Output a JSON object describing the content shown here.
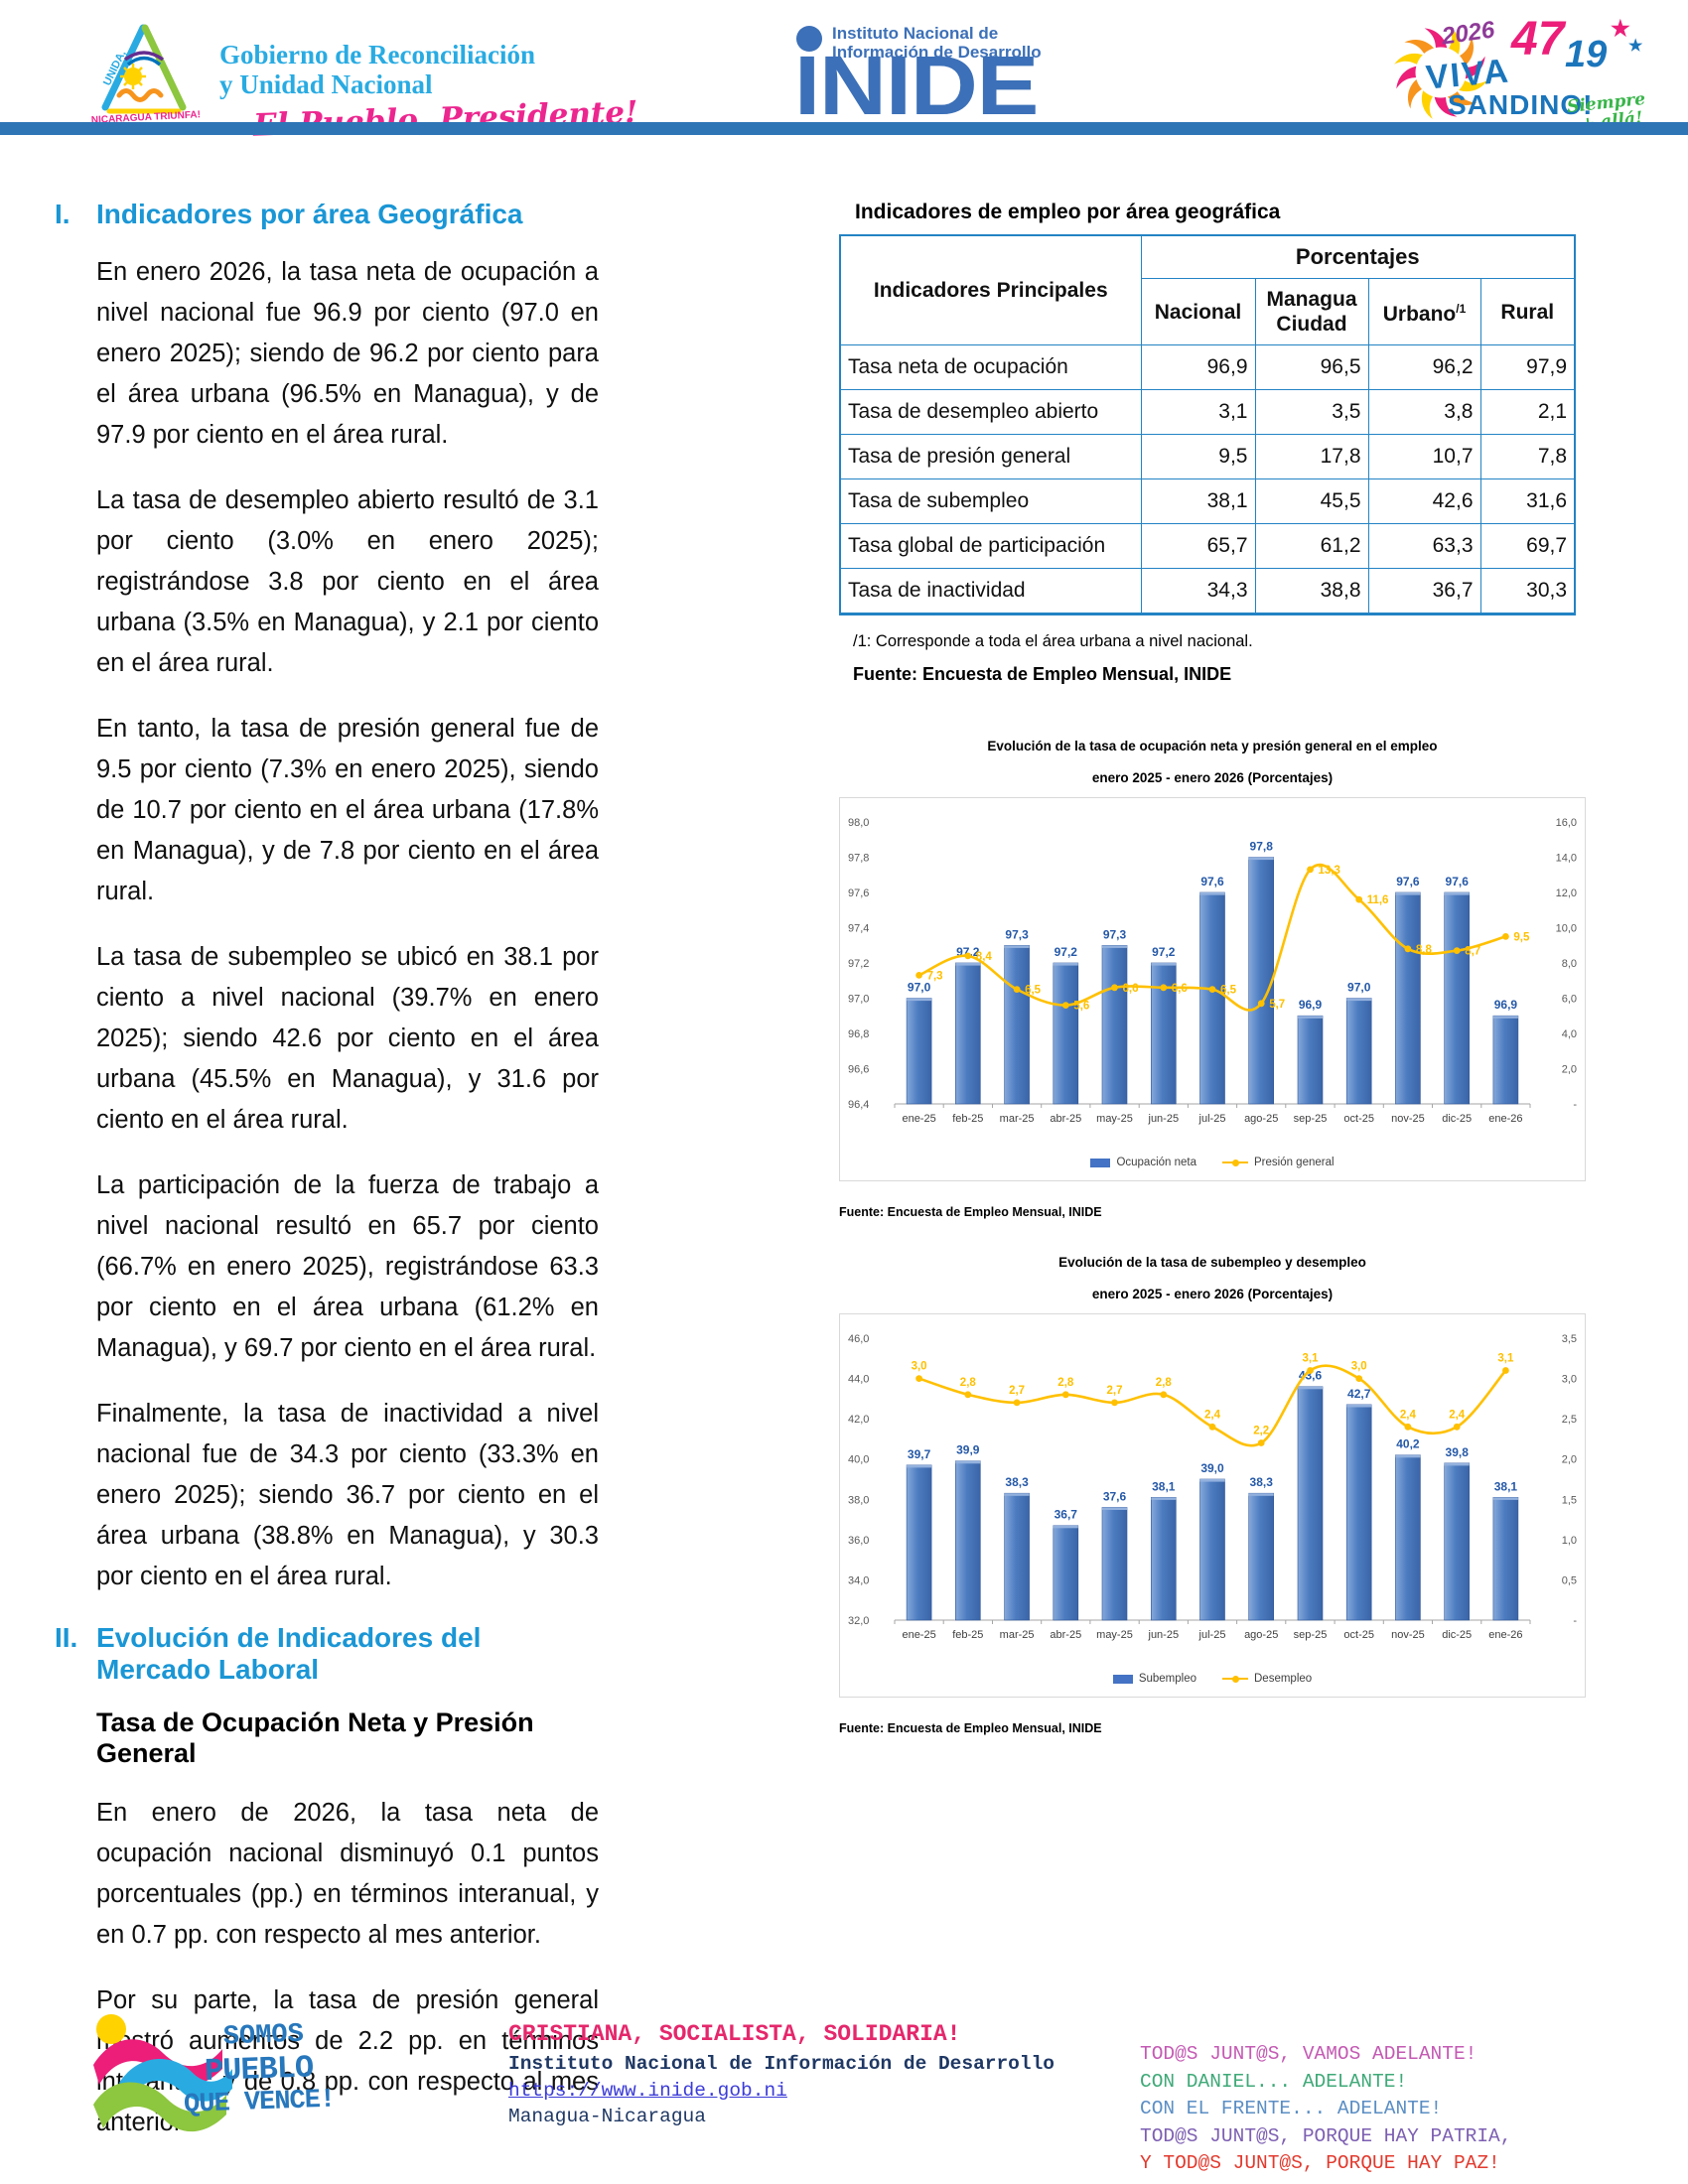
{
  "header": {
    "gov_logo": {
      "emblem_text_1": "UNIDA,",
      "emblem_text_2": "NICARAGUA TRIUNFA!",
      "line1": "Gobierno de Reconciliación",
      "line2": "y Unidad Nacional",
      "slogan": "El Pueblo, Presidente!"
    },
    "inide_logo": {
      "line1": "Instituto Nacional de",
      "line2": "Información de Desarrollo",
      "acronym": "INIDE"
    },
    "sandino_logo": {
      "year": "2026",
      "anniversary_1": "47",
      "anniversary_2": "19",
      "star_1": "★",
      "star_2": "★",
      "line1": "VIVA",
      "line2": "SANDINO!",
      "tagline_1": "Siempre",
      "tagline_2": "+ allá!"
    }
  },
  "left_column": {
    "section1": {
      "number": "I.",
      "title": "Indicadores por área Geográfica",
      "paragraphs": [
        "En enero 2026, la tasa neta de ocupación a nivel nacional fue 96.9 por ciento (97.0 en enero 2025); siendo de 96.2 por ciento para el área urbana (96.5% en Managua), y de 97.9 por ciento en el área rural.",
        "La tasa de desempleo abierto resultó de 3.1 por ciento (3.0% en enero 2025); registrándose 3.8 por ciento en el área urbana (3.5% en Managua), y 2.1 por ciento en el área rural.",
        "En tanto, la tasa de presión general fue de 9.5 por ciento (7.3% en enero 2025), siendo de 10.7 por ciento en el área urbana (17.8% en Managua), y de 7.8 por ciento en el área rural.",
        "La tasa de subempleo se ubicó en 38.1 por ciento a nivel nacional (39.7% en enero 2025); siendo 42.6 por ciento en el área urbana (45.5% en Managua), y 31.6 por ciento en el área rural.",
        "La participación de la fuerza de trabajo a nivel nacional resultó en 65.7 por ciento (66.7% en enero 2025), registrándose 63.3 por ciento en el área urbana (61.2% en Managua), y 69.7 por ciento en el área rural.",
        "Finalmente, la tasa de inactividad a nivel nacional fue de 34.3 por ciento (33.3% en enero 2025); siendo 36.7 por ciento en el área urbana (38.8% en Managua), y 30.3 por ciento en el área rural."
      ]
    },
    "section2": {
      "number": "II.",
      "title": "Evolución de Indicadores del Mercado Laboral",
      "subtitle": "Tasa de Ocupación Neta y Presión General",
      "paragraphs": [
        "En enero de 2026, la tasa neta de ocupación nacional disminuyó 0.1 puntos porcentuales (pp.) en términos interanual, y en 0.7 pp. con respecto al mes anterior.",
        "Por su parte, la tasa de presión general mostró aumentos de 2.2 pp. en términos interanual, y de 0.8 pp. con respecto al mes anterior."
      ]
    }
  },
  "employment_table": {
    "title": "Indicadores de empleo por área geográfica",
    "row_header": "Indicadores Principales",
    "col_group_header": "Porcentajes",
    "columns": [
      {
        "label": "Nacional"
      },
      {
        "label": "Managua Ciudad"
      },
      {
        "label": "Urbano",
        "sup": "/1"
      },
      {
        "label": "Rural"
      }
    ],
    "rows": [
      {
        "label": "Tasa neta de ocupación",
        "values": [
          "96,9",
          "96,5",
          "96,2",
          "97,9"
        ]
      },
      {
        "label": "Tasa de desempleo abierto",
        "values": [
          "3,1",
          "3,5",
          "3,8",
          "2,1"
        ]
      },
      {
        "label": "Tasa de presión general",
        "values": [
          "9,5",
          "17,8",
          "10,7",
          "7,8"
        ]
      },
      {
        "label": "Tasa de subempleo",
        "values": [
          "38,1",
          "45,5",
          "42,6",
          "31,6"
        ]
      },
      {
        "label": "Tasa global de participación",
        "values": [
          "65,7",
          "61,2",
          "63,3",
          "69,7"
        ]
      },
      {
        "label": "Tasa de inactividad",
        "values": [
          "34,3",
          "38,8",
          "36,7",
          "30,3"
        ]
      }
    ],
    "footnote": "/1: Corresponde a toda el área urbana a nivel nacional.",
    "source": "Fuente: Encuesta de Empleo Mensual, INIDE"
  },
  "chart_data": [
    {
      "type": "bar+line",
      "title": "Evolución de la tasa de ocupación neta y presión general en el empleo",
      "subtitle": "enero 2025 - enero 2026  (Porcentajes)",
      "categories": [
        "ene-25",
        "feb-25",
        "mar-25",
        "abr-25",
        "may-25",
        "jun-25",
        "jul-25",
        "ago-25",
        "sep-25",
        "oct-25",
        "nov-25",
        "dic-25",
        "ene-26"
      ],
      "series": [
        {
          "name": "Ocupación neta",
          "kind": "bar",
          "axis": "left",
          "color": "#4472C4",
          "values": [
            97.0,
            97.2,
            97.3,
            97.2,
            97.3,
            97.2,
            97.6,
            97.8,
            96.9,
            97.0,
            97.6,
            97.6,
            96.9
          ]
        },
        {
          "name": "Presión general",
          "kind": "line",
          "axis": "right",
          "color": "#FFC000",
          "values": [
            7.3,
            8.4,
            6.5,
            5.6,
            6.6,
            6.6,
            6.5,
            5.7,
            13.3,
            11.6,
            8.8,
            8.7,
            9.5
          ]
        }
      ],
      "left_axis": {
        "min": 96.4,
        "max": 98.0,
        "step": 0.2
      },
      "right_axis": {
        "min": 0,
        "max": 16.0,
        "step": 2.0,
        "zero_label": "-"
      },
      "grid": false,
      "legend_position": "bottom",
      "line_label_position": "right",
      "source": "Fuente: Encuesta de Empleo Mensual, INIDE"
    },
    {
      "type": "bar+line",
      "title": "Evolución de la tasa de subempleo y desempleo",
      "subtitle": "enero 2025 - enero 2026  (Porcentajes)",
      "categories": [
        "ene-25",
        "feb-25",
        "mar-25",
        "abr-25",
        "may-25",
        "jun-25",
        "jul-25",
        "ago-25",
        "sep-25",
        "oct-25",
        "nov-25",
        "dic-25",
        "ene-26"
      ],
      "series": [
        {
          "name": "Subempleo",
          "kind": "bar",
          "axis": "left",
          "color": "#4472C4",
          "values": [
            39.7,
            39.9,
            38.3,
            36.7,
            37.6,
            38.1,
            39.0,
            38.3,
            43.6,
            42.7,
            40.2,
            39.8,
            38.1
          ]
        },
        {
          "name": "Desempleo",
          "kind": "line",
          "axis": "right",
          "color": "#FFC000",
          "values": [
            3.0,
            2.8,
            2.7,
            2.8,
            2.7,
            2.8,
            2.4,
            2.2,
            3.1,
            3.0,
            2.4,
            2.4,
            3.1
          ]
        }
      ],
      "left_axis": {
        "min": 32.0,
        "max": 46.0,
        "step": 2.0
      },
      "right_axis": {
        "min": 0,
        "max": 3.5,
        "step": 0.5,
        "zero_label": "-"
      },
      "grid": false,
      "legend_position": "bottom",
      "line_label_position": "above",
      "source": "Fuente: Encuesta de Empleo Mensual, INIDE"
    }
  ],
  "footer": {
    "somos_logo": {
      "line1": "SOMOS",
      "line2": "PUEBLO",
      "line3": "QUE VENCE!"
    },
    "center": {
      "line1": "CRISTIANA, SOCIALISTA, SOLIDARIA!",
      "line2": "Instituto Nacional de Información de Desarrollo",
      "link": "https://www.inide.gob.ni",
      "line4": "Managua-Nicaragua"
    },
    "right_lines": [
      {
        "text": "TOD@S JUNT@S, VAMOS ADELANTE!",
        "color": "#C45AB3"
      },
      {
        "text": "CON DANIEL... ADELANTE!",
        "color": "#3FA978"
      },
      {
        "text": "CON EL FRENTE... ADELANTE!",
        "color": "#5B8EC4"
      },
      {
        "text": "TOD@S JUNT@S, PORQUE HAY PATRIA,",
        "color": "#7D5FB2"
      },
      {
        "text": "Y TOD@S JUNT@S, PORQUE HAY PAZ!",
        "color": "#E23A2E"
      }
    ],
    "accent_colors": {
      "bar_blue": "#2E75B6",
      "table_border_blue": "#2383C4",
      "heading_blue": "#1A96D5"
    }
  }
}
